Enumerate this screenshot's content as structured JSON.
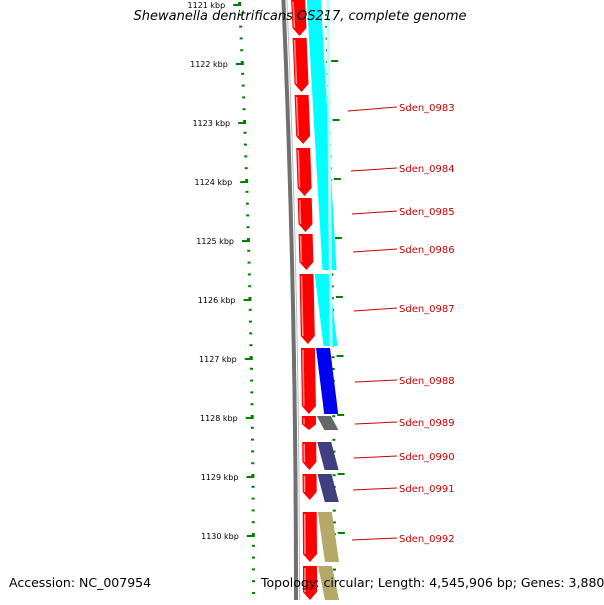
{
  "header": {
    "title": "Shewanella denitrificans OS217, complete genome"
  },
  "footer": {
    "accession": "Accession: NC_007954",
    "topology": "Topology: circular; Length: 4,545,906 bp; Genes: 3,880"
  },
  "colors": {
    "tick": "#008000",
    "label": "#cc0000",
    "label_line": "#cc0000",
    "backbone": "#707070",
    "cds_forward": "#ff0000",
    "cog_cyan": "#00ffff",
    "cog_blue": "#0000ee",
    "cog_gray": "#666666",
    "cog_purple": "#404080",
    "cog_khaki": "#b5a96a"
  },
  "ruler": {
    "labels": [
      "1121 kbp",
      "1122 kbp",
      "1123 kbp",
      "1124 kbp",
      "1125 kbp",
      "1126 kbp",
      "1127 kbp",
      "1128 kbp",
      "1129 kbp",
      "1130 kbp"
    ]
  },
  "genes": [
    {
      "name": "Sden_0983",
      "cog": "cog_cyan"
    },
    {
      "name": "Sden_0984",
      "cog": "cog_cyan"
    },
    {
      "name": "Sden_0985",
      "cog": "cog_cyan"
    },
    {
      "name": "Sden_0986",
      "cog": "cog_cyan"
    },
    {
      "name": "Sden_0987",
      "cog": "cog_cyan"
    },
    {
      "name": "Sden_0988",
      "cog": "cog_blue"
    },
    {
      "name": "Sden_0989",
      "cog": "cog_gray"
    },
    {
      "name": "Sden_0990",
      "cog": "cog_purple"
    },
    {
      "name": "Sden_0991",
      "cog": "cog_purple"
    },
    {
      "name": "Sden_0992",
      "cog": "cog_khaki"
    }
  ]
}
